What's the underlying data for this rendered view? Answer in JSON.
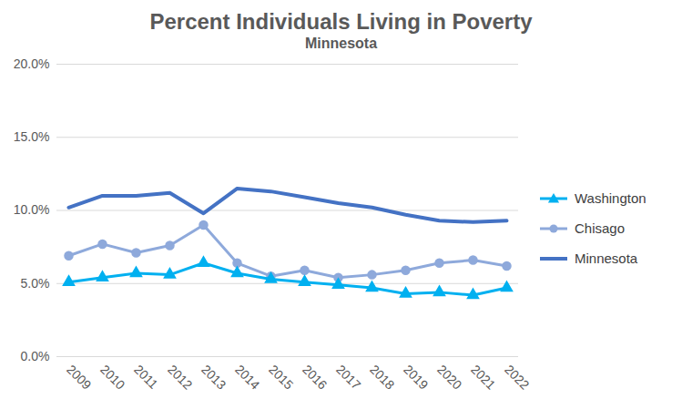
{
  "chart_data": {
    "type": "line",
    "title": "Percent Individuals Living in Poverty",
    "subtitle": "Minnesota",
    "categories": [
      "2009",
      "2010",
      "2011",
      "2012",
      "2013",
      "2014",
      "2015",
      "2016",
      "2017",
      "2018",
      "2019",
      "2020",
      "2021",
      "2022"
    ],
    "series": [
      {
        "name": "Washington",
        "color": "#00b0f0",
        "marker": "triangle",
        "values": [
          5.1,
          5.4,
          5.7,
          5.6,
          6.4,
          5.7,
          5.3,
          5.1,
          4.9,
          4.7,
          4.3,
          4.4,
          4.2,
          4.7
        ]
      },
      {
        "name": "Chisago",
        "color": "#8ea9db",
        "marker": "circle",
        "values": [
          6.9,
          7.7,
          7.1,
          7.6,
          9.0,
          6.4,
          5.5,
          5.9,
          5.4,
          5.6,
          5.9,
          6.4,
          6.6,
          6.2
        ]
      },
      {
        "name": "Minnesota",
        "color": "#4472c4",
        "marker": "none",
        "values": [
          10.2,
          11.0,
          11.0,
          11.2,
          9.8,
          11.5,
          11.3,
          10.9,
          10.5,
          10.2,
          9.7,
          9.3,
          9.2,
          9.3
        ]
      }
    ],
    "ylim": [
      0,
      20
    ],
    "yticks": [
      {
        "value": 0,
        "label": "0.0%"
      },
      {
        "value": 5,
        "label": "5.0%"
      },
      {
        "value": 10,
        "label": "10.0%"
      },
      {
        "value": 15,
        "label": "15.0%"
      },
      {
        "value": 20,
        "label": "20.0%"
      }
    ],
    "grid": true,
    "legend": "right"
  }
}
